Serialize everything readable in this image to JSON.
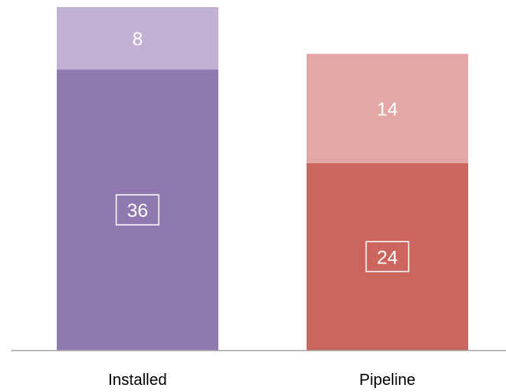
{
  "chart_data": {
    "type": "bar",
    "stacked": true,
    "categories": [
      "Installed",
      "Pipeline"
    ],
    "series": [
      {
        "values": [
          36,
          24
        ]
      },
      {
        "values": [
          8,
          14
        ]
      }
    ],
    "colors": [
      [
        "#8f79b0",
        "#c2b1d4"
      ],
      [
        "#cc655e",
        "#e3a7a5"
      ]
    ],
    "boxed_series": 0,
    "axis_color": "#a6a6a6",
    "title": "",
    "xlabel": "",
    "ylabel": "",
    "ylim": [
      0,
      44
    ],
    "grid": false,
    "legend": "none"
  }
}
